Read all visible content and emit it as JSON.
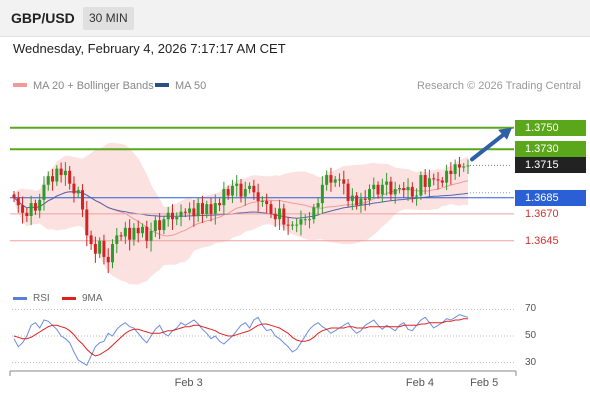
{
  "header": {
    "pair": "GBP/USD",
    "timeframe": "30 MIN"
  },
  "date_line": "Wednesday, February 4, 2026 7:17:17 AM CET",
  "legend": {
    "ma20_bb": "MA 20 + Bollinger Bands",
    "ma50": "MA 50"
  },
  "credit": "Research © 2026 Trading Central",
  "colors": {
    "green": "#5ba71b",
    "blue": "#2a5fd6",
    "red": "#d23030",
    "ma20": "#f29a9a",
    "ma50": "#5566aa",
    "bb_fill": "#fbdcdc",
    "arrow": "#2f5fa8",
    "up": "#2e9b2e",
    "down": "#d22222"
  },
  "rsi_legend": {
    "rsi": "RSI",
    "ma": "9MA"
  },
  "chart_data": [
    {
      "type": "candlestick",
      "title": "GBP/USD 30 MIN",
      "ylim": [
        1.3603,
        1.3785
      ],
      "x_labels": [
        {
          "i": 41,
          "label": "Feb 3"
        },
        {
          "i": 95,
          "label": "Feb 4"
        },
        {
          "i": 110,
          "label": "Feb 5"
        }
      ],
      "levels": [
        {
          "value": 1.375,
          "label": "1.3750",
          "style": "green",
          "line": "solid"
        },
        {
          "value": 1.373,
          "label": "1.3730",
          "style": "green",
          "line": "solid"
        },
        {
          "value": 1.3715,
          "label": "1.3715",
          "style": "dark",
          "line": "dotted"
        },
        {
          "value": 1.3685,
          "label": "1.3685",
          "style": "blue",
          "line": "solid"
        },
        {
          "value": 1.367,
          "label": "1.3670",
          "style": "red",
          "line": "solid"
        },
        {
          "value": 1.3645,
          "label": "1.3645",
          "style": "red",
          "line": "solid"
        }
      ],
      "forecast_arrow": {
        "from": 1.3715,
        "to": 1.375
      },
      "closes": [
        1.3685,
        1.3678,
        1.3671,
        1.3668,
        1.368,
        1.3673,
        1.3683,
        1.3697,
        1.3705,
        1.37,
        1.3712,
        1.3706,
        1.371,
        1.3698,
        1.3689,
        1.3692,
        1.3674,
        1.365,
        1.3642,
        1.3633,
        1.3645,
        1.363,
        1.3625,
        1.3642,
        1.365,
        1.3649,
        1.3657,
        1.3646,
        1.3657,
        1.3652,
        1.3658,
        1.3645,
        1.3654,
        1.3664,
        1.3655,
        1.3665,
        1.3671,
        1.3665,
        1.3667,
        1.3672,
        1.3671,
        1.3675,
        1.3668,
        1.368,
        1.367,
        1.3679,
        1.367,
        1.368,
        1.3678,
        1.3693,
        1.3687,
        1.3696,
        1.3698,
        1.3686,
        1.3693,
        1.3696,
        1.369,
        1.3682,
        1.3682,
        1.3679,
        1.367,
        1.3665,
        1.3675,
        1.366,
        1.3659,
        1.366,
        1.366,
        1.3665,
        1.3665,
        1.3665,
        1.3676,
        1.368,
        1.3697,
        1.3706,
        1.3699,
        1.3702,
        1.3702,
        1.3698,
        1.3682,
        1.3687,
        1.3678,
        1.3684,
        1.3683,
        1.3693,
        1.3697,
        1.3688,
        1.3697,
        1.37,
        1.3688,
        1.3693,
        1.3694,
        1.3692,
        1.3695,
        1.3686,
        1.3687,
        1.3706,
        1.3695,
        1.3703,
        1.3702,
        1.3701,
        1.3699,
        1.371,
        1.3707,
        1.3716,
        1.3713,
        1.3714,
        1.3715
      ]
    },
    {
      "type": "line",
      "title": "RSI",
      "ylim": [
        20,
        80
      ],
      "yticks": [
        70,
        50,
        30
      ],
      "series": [
        {
          "name": "RSI",
          "values": [
            48,
            42,
            45,
            50,
            58,
            60,
            56,
            62,
            61,
            58,
            55,
            50,
            48,
            45,
            38,
            32,
            30,
            28,
            35,
            42,
            45,
            46,
            52,
            50,
            55,
            58,
            60,
            57,
            56,
            52,
            48,
            45,
            50,
            55,
            58,
            52,
            50,
            54,
            56,
            60,
            58,
            60,
            62,
            59,
            55,
            52,
            48,
            50,
            46,
            44,
            47,
            50,
            54,
            58,
            60,
            56,
            62,
            64,
            58,
            54,
            55,
            50,
            48,
            45,
            42,
            38,
            40,
            45,
            50,
            55,
            58,
            60,
            57,
            55,
            52,
            54,
            56,
            58,
            60,
            55,
            52,
            54,
            58,
            60,
            62,
            58,
            55,
            58,
            56,
            54,
            58,
            60,
            55,
            54,
            58,
            62,
            64,
            60,
            56,
            58,
            60,
            63,
            62,
            64,
            66,
            65,
            64
          ]
        },
        {
          "name": "9MA",
          "values": [
            50,
            49,
            48,
            48,
            49,
            51,
            53,
            55,
            57,
            58,
            58,
            57,
            56,
            54,
            51,
            47,
            44,
            40,
            37,
            35,
            36,
            38,
            40,
            43,
            46,
            49,
            52,
            54,
            55,
            55,
            54,
            53,
            52,
            52,
            52,
            53,
            54,
            54,
            55,
            56,
            57,
            57,
            58,
            58,
            57,
            56,
            55,
            54,
            52,
            51,
            50,
            50,
            51,
            52,
            53,
            54,
            56,
            58,
            59,
            59,
            58,
            57,
            56,
            54,
            52,
            49,
            47,
            46,
            46,
            47,
            49,
            52,
            54,
            55,
            56,
            56,
            56,
            56,
            57,
            57,
            56,
            56,
            56,
            57,
            57,
            57,
            57,
            57,
            57,
            57,
            57,
            58,
            58,
            58,
            58,
            59,
            59,
            60,
            60,
            60,
            60,
            61,
            61,
            62,
            62,
            63,
            63
          ]
        }
      ]
    }
  ]
}
